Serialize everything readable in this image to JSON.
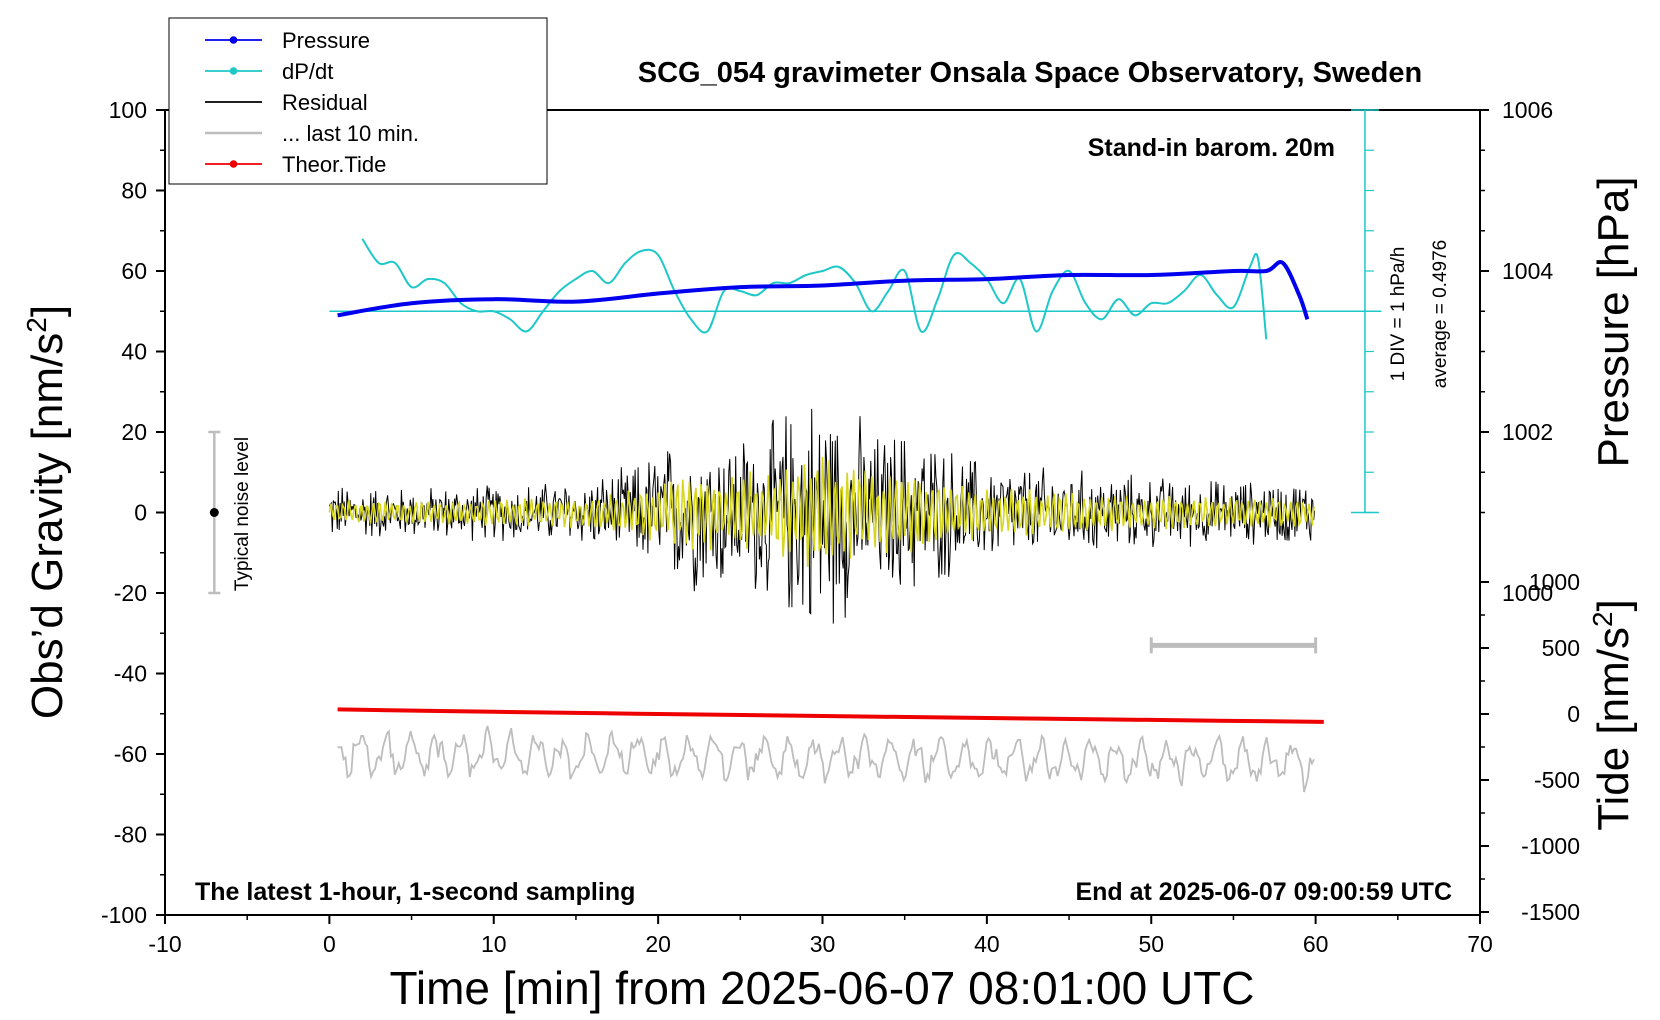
{
  "chart_data": {
    "type": "line",
    "title": "SCG_054 gravimeter Onsala Space Observatory, Sweden",
    "xlabel": "Time [min] from 2025-06-07 08:01:00 UTC",
    "ylabel": "Obs'd Gravity [nm/s2]",
    "y2label_pressure": "Pressure [hPa]",
    "y2label_tide": "Tide [nm/s2]",
    "xlim": [
      -10,
      70
    ],
    "ylim": [
      -100,
      100
    ],
    "x_ticks": [
      "-10",
      "0",
      "10",
      "20",
      "30",
      "40",
      "50",
      "60",
      "70"
    ],
    "y_ticks": [
      "100",
      "80",
      "60",
      "40",
      "20",
      "0",
      "-20",
      "-40",
      "-60",
      "-80",
      "-100"
    ],
    "pressure_ticks": [
      "1006",
      "1004",
      "1002",
      "1000"
    ],
    "tide_ticks": [
      "1000",
      "500",
      "0",
      "-500",
      "-1000",
      "-1500"
    ],
    "grid": false,
    "legend_position": "top-left",
    "legend": [
      {
        "name": "Pressure",
        "color": "#0000ee"
      },
      {
        "name": "dP/dt",
        "color": "#1ec8c8"
      },
      {
        "name": "Residual",
        "color": "#000000"
      },
      {
        "name": "... last 10 min.",
        "color": "#bdbdbd"
      },
      {
        "name": "Theor.Tide",
        "color": "#ee0000"
      }
    ],
    "annotations": {
      "barometer": "Stand-in barom. 20m",
      "latest": "The latest 1-hour, 1-second sampling",
      "end": "End at 2025-06-07 09:00:59 UTC",
      "noise": "Typical noise level",
      "div": "1 DIV = 1 hPa/h",
      "average": "average = 0.4976"
    },
    "series": [
      {
        "name": "Pressure",
        "unit": "hPa",
        "x": [
          0.5,
          5,
          10,
          15,
          20,
          25,
          30,
          35,
          40,
          45,
          50,
          55,
          57,
          58,
          59,
          59.5
        ],
        "values": [
          1003.45,
          1003.6,
          1003.65,
          1003.62,
          1003.72,
          1003.8,
          1003.82,
          1003.88,
          1003.9,
          1003.95,
          1003.95,
          1004.0,
          1004.0,
          1004.1,
          1003.7,
          1003.4
        ]
      },
      {
        "name": "dP/dt",
        "unit": "nm/s2 axis",
        "x": [
          2,
          3,
          4,
          5,
          6,
          7,
          8,
          9,
          10,
          11,
          12,
          13,
          14,
          15,
          16,
          17,
          18,
          19,
          20,
          21,
          22,
          23,
          24,
          25,
          26,
          27,
          28,
          29,
          30,
          31,
          32,
          33,
          34,
          35,
          36,
          37,
          38,
          39,
          40,
          41,
          42,
          43,
          44,
          45,
          46,
          47,
          48,
          49,
          50,
          51,
          52,
          53,
          54,
          55,
          56,
          56.5,
          57
        ],
        "values": [
          68,
          62,
          62,
          56,
          58,
          57,
          52,
          50,
          50,
          48,
          45,
          50,
          55,
          58,
          60,
          57,
          62,
          65,
          64,
          55,
          48,
          45,
          55,
          55,
          54,
          57,
          57,
          59,
          60,
          61,
          57,
          50,
          55,
          60,
          45,
          53,
          64,
          62,
          58,
          52,
          58,
          45,
          55,
          60,
          52,
          48,
          53,
          49,
          52,
          52,
          55,
          59,
          54,
          51,
          61,
          63,
          43
        ]
      },
      {
        "name": "dP/dt average line",
        "x": [
          0,
          64
        ],
        "values": [
          50,
          50
        ]
      },
      {
        "name": "Residual",
        "x": [
          0,
          5,
          10,
          15,
          18,
          20,
          22,
          25,
          27,
          28,
          29,
          30,
          31,
          32,
          33,
          35,
          38,
          40,
          45,
          50,
          55,
          60
        ],
        "values": [
          0,
          0,
          0,
          0,
          0,
          0,
          0,
          0,
          0,
          0,
          0,
          0,
          0,
          0,
          0,
          0,
          0,
          0,
          0,
          0,
          0,
          0
        ],
        "envelope": [
          8,
          7,
          8,
          9,
          12,
          18,
          22,
          22,
          25,
          30,
          33,
          36,
          30,
          28,
          22,
          24,
          18,
          14,
          12,
          10,
          9,
          9
        ]
      },
      {
        "name": "Theor.Tide",
        "unit": "nm/s2",
        "x": [
          0.5,
          10,
          20,
          30,
          40,
          50,
          60.5
        ],
        "values": [
          35,
          17,
          0,
          -15,
          -30,
          -45,
          -60
        ]
      },
      {
        "name": "... last 10 min.",
        "x": [
          0.5,
          60
        ],
        "values": [
          -60,
          -62
        ]
      },
      {
        "name": "last 10 min. scale bar",
        "x": [
          50,
          60
        ],
        "values": [
          -33,
          -33
        ]
      },
      {
        "name": "Typical noise level",
        "x": [
          -7,
          -7
        ],
        "values": [
          -20,
          20
        ]
      }
    ]
  }
}
